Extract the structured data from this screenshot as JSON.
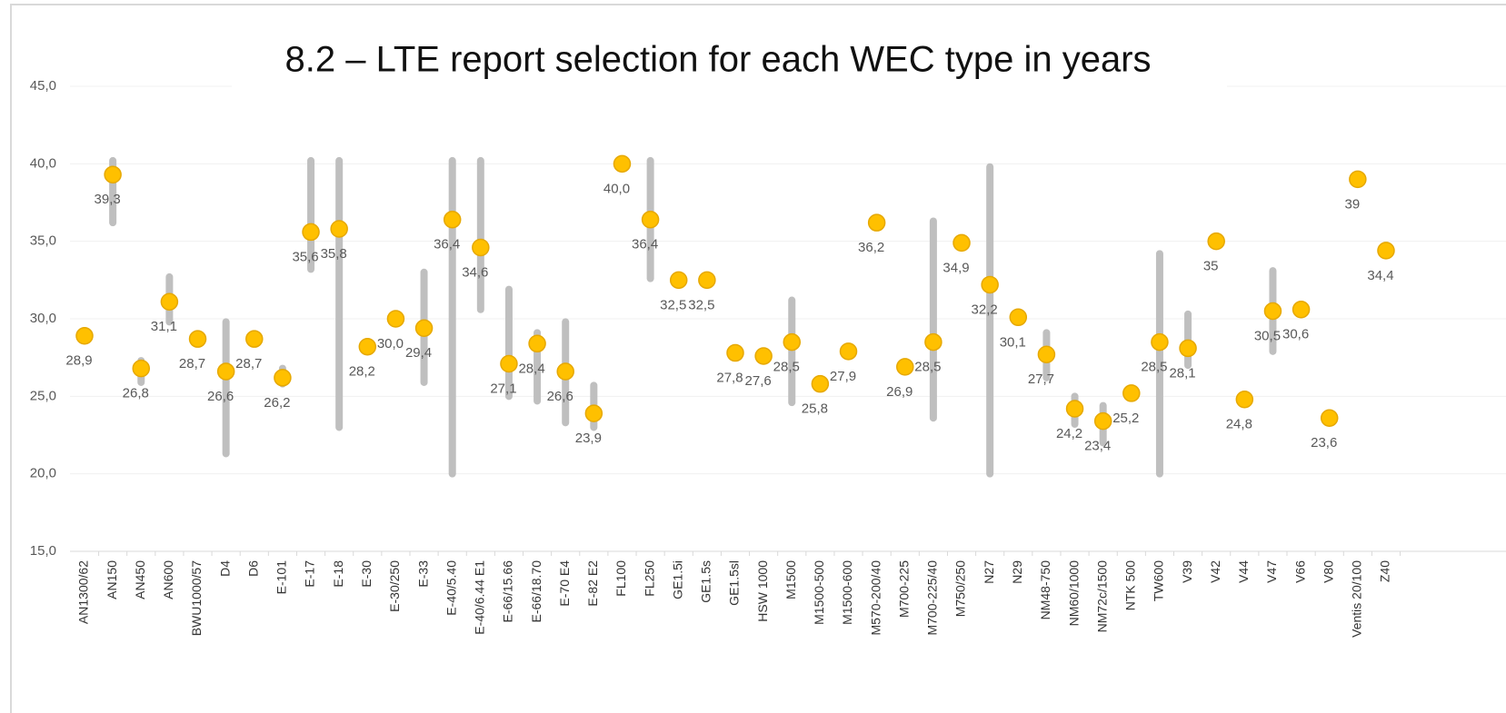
{
  "chart_data": {
    "type": "dot_range",
    "title": "8.2 – LTE report selection for each WEC type in years",
    "categories": [
      "AN1300/62",
      "AN150",
      "AN450",
      "AN600",
      "BWU1000/57",
      "D4",
      "D6",
      "E-101",
      "E-17",
      "E-18",
      "E-30",
      "E-30/250",
      "E-33",
      "E-40/5.40",
      "E-40/6.44 E1",
      "E-66/15.66",
      "E-66/18.70",
      "E-70 E4",
      "E-82 E2",
      "FL100",
      "FL250",
      "GE1.5i",
      "GE1.5s",
      "GE1.5sl",
      "HSW 1000",
      "M1500",
      "M1500-500",
      "M1500-600",
      "M570-200/40",
      "M700-225",
      "M700-225/40",
      "M750/250",
      "N27",
      "N29",
      "NM48-750",
      "NM60/1000",
      "NM72c/1500",
      "NTK 500",
      "TW600",
      "V39",
      "V42",
      "V44",
      "V47",
      "V66",
      "V80",
      "Ventis 20/100",
      "Z40"
    ],
    "values": [
      28.9,
      39.3,
      26.8,
      31.1,
      28.7,
      26.6,
      28.7,
      26.2,
      35.6,
      35.8,
      28.2,
      30.0,
      29.4,
      36.4,
      34.6,
      27.1,
      28.4,
      26.6,
      23.9,
      40.0,
      36.4,
      32.5,
      32.5,
      27.8,
      27.6,
      28.5,
      25.8,
      27.9,
      36.2,
      26.9,
      28.5,
      34.9,
      32.2,
      30.1,
      27.7,
      24.2,
      23.4,
      25.2,
      28.5,
      28.1,
      35,
      24.8,
      30.5,
      30.6,
      23.6,
      39,
      34.4
    ],
    "value_labels": [
      "28,9",
      "39,3",
      "26,8",
      "31,1",
      "28,7",
      "26,6",
      "28,7",
      "26,2",
      "35,6",
      "35,8",
      "28,2",
      "30,0",
      "29,4",
      "36,4",
      "34,6",
      "27,1",
      "28,4",
      "26,6",
      "23,9",
      "40,0",
      "36,4",
      "32,5",
      "32,5",
      "27,8",
      "27,6",
      "28,5",
      "25,8",
      "27,9",
      "36,2",
      "26,9",
      "28,5",
      "34,9",
      "32,2",
      "30,1",
      "27,7",
      "24,2",
      "23,4",
      "25,2",
      "28,5",
      "28,1",
      "35",
      "24,8",
      "30,5",
      "30,6",
      "23,6",
      "39",
      "34,4"
    ],
    "low": [
      null,
      36.2,
      25.9,
      29.8,
      null,
      21.3,
      null,
      25.8,
      33.2,
      23.0,
      null,
      null,
      25.9,
      20.0,
      30.6,
      25.0,
      24.7,
      23.3,
      23.0,
      null,
      32.6,
      null,
      null,
      null,
      null,
      24.6,
      null,
      null,
      null,
      null,
      23.6,
      null,
      20.0,
      null,
      26.2,
      23.2,
      22.0,
      null,
      20.0,
      27.0,
      null,
      null,
      27.9,
      null,
      null,
      null,
      null
    ],
    "high": [
      null,
      40.2,
      27.3,
      32.7,
      null,
      29.8,
      null,
      26.8,
      40.2,
      40.2,
      null,
      null,
      33.0,
      40.2,
      40.2,
      31.9,
      29.1,
      29.8,
      25.7,
      null,
      40.2,
      null,
      null,
      null,
      null,
      31.2,
      null,
      null,
      null,
      null,
      36.3,
      null,
      39.8,
      null,
      29.1,
      25.0,
      24.4,
      null,
      34.2,
      30.3,
      null,
      null,
      33.1,
      null,
      null,
      null,
      null
    ],
    "color": "#ffc000",
    "range_color": "#bfbfbf",
    "ylim": [
      15,
      45
    ],
    "yticks": [
      {
        "value": 15,
        "label": "15,0"
      },
      {
        "value": 20,
        "label": "20,0"
      },
      {
        "value": 25,
        "label": "25,0"
      },
      {
        "value": 30,
        "label": "30,0"
      },
      {
        "value": 35,
        "label": "35,0"
      },
      {
        "value": 40,
        "label": "40,0"
      },
      {
        "value": 45,
        "label": "45,0"
      }
    ],
    "grid": true
  }
}
